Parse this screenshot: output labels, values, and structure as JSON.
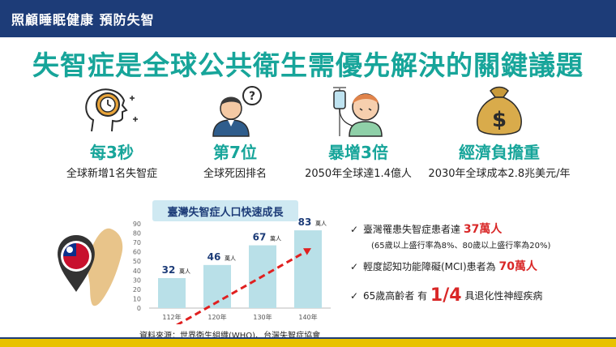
{
  "header": {
    "title": "照顧睡眠健康 預防失智"
  },
  "headline": "失智症是全球公共衛生需優先解決的關鍵議題",
  "stats": [
    {
      "icon": "head-clock-icon",
      "value": "每3秒",
      "caption": "全球新增1名失智症"
    },
    {
      "icon": "confused-person-icon",
      "value": "第7位",
      "caption": "全球死因排名"
    },
    {
      "icon": "patient-iv-icon",
      "value": "暴增3倍",
      "caption": "2050年全球達1.4億人"
    },
    {
      "icon": "money-bag-icon",
      "value": "經濟負擔重",
      "caption": "2030年全球成本2.8兆美元/年"
    }
  ],
  "chart_data": {
    "type": "bar",
    "title": "臺灣失智症人口快速成長",
    "categories": [
      "112年",
      "120年",
      "130年",
      "140年"
    ],
    "values": [
      32,
      46,
      67,
      83
    ],
    "unit": "萬人",
    "yticks": [
      "0",
      "10",
      "20",
      "30",
      "40",
      "50",
      "60",
      "70",
      "80",
      "90"
    ],
    "ylim": [
      0,
      90
    ],
    "bar_color": "#b9e0e8",
    "trend_color": "#e02020"
  },
  "source": "資料來源：世界衛生組織(WHO)、台灣失智症協會",
  "bullets": [
    {
      "pre": "臺灣罹患失智症患者達 ",
      "hl": "37萬人",
      "post": ""
    },
    {
      "pre": "輕度認知功能障礙(MCI)患者為 ",
      "hl": "70萬人",
      "post": ""
    },
    {
      "pre": "65歲高齡者 有 ",
      "hl": "1/4",
      "post": " 具退化性神經疾病"
    }
  ],
  "sub_note": "(65歲以上盛行率為8%、80歲以上盛行率為20%)",
  "check": "✓",
  "colors": {
    "navy": "#1d3c78",
    "teal": "#17a59a",
    "red": "#d92727",
    "yellow": "#e8c200"
  }
}
